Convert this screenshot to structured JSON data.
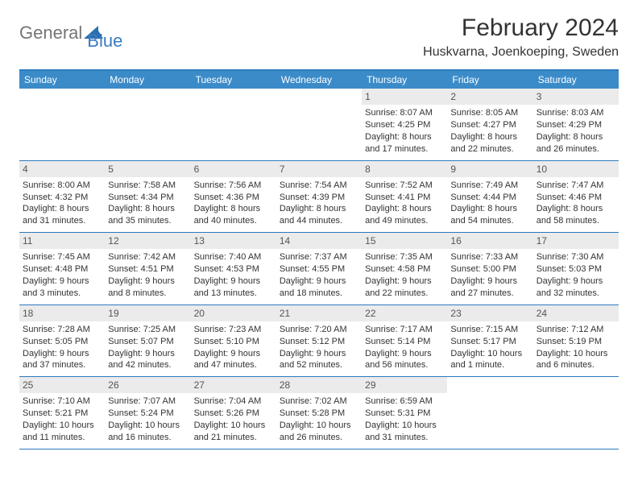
{
  "logo": {
    "text1": "General",
    "text2": "Blue"
  },
  "header": {
    "title": "February 2024",
    "location": "Huskvarna, Joenkoeping, Sweden"
  },
  "dayNames": [
    "Sunday",
    "Monday",
    "Tuesday",
    "Wednesday",
    "Thursday",
    "Friday",
    "Saturday"
  ],
  "colors": {
    "accent": "#3b8bc9",
    "border": "#2b7ac0",
    "dayNumBg": "#ebebeb",
    "text": "#333333",
    "logoGray": "#757575",
    "logoBlue": "#3b7bbf"
  },
  "weeks": [
    [
      null,
      null,
      null,
      null,
      {
        "n": "1",
        "sunrise": "Sunrise: 8:07 AM",
        "sunset": "Sunset: 4:25 PM",
        "d1": "Daylight: 8 hours",
        "d2": "and 17 minutes."
      },
      {
        "n": "2",
        "sunrise": "Sunrise: 8:05 AM",
        "sunset": "Sunset: 4:27 PM",
        "d1": "Daylight: 8 hours",
        "d2": "and 22 minutes."
      },
      {
        "n": "3",
        "sunrise": "Sunrise: 8:03 AM",
        "sunset": "Sunset: 4:29 PM",
        "d1": "Daylight: 8 hours",
        "d2": "and 26 minutes."
      }
    ],
    [
      {
        "n": "4",
        "sunrise": "Sunrise: 8:00 AM",
        "sunset": "Sunset: 4:32 PM",
        "d1": "Daylight: 8 hours",
        "d2": "and 31 minutes."
      },
      {
        "n": "5",
        "sunrise": "Sunrise: 7:58 AM",
        "sunset": "Sunset: 4:34 PM",
        "d1": "Daylight: 8 hours",
        "d2": "and 35 minutes."
      },
      {
        "n": "6",
        "sunrise": "Sunrise: 7:56 AM",
        "sunset": "Sunset: 4:36 PM",
        "d1": "Daylight: 8 hours",
        "d2": "and 40 minutes."
      },
      {
        "n": "7",
        "sunrise": "Sunrise: 7:54 AM",
        "sunset": "Sunset: 4:39 PM",
        "d1": "Daylight: 8 hours",
        "d2": "and 44 minutes."
      },
      {
        "n": "8",
        "sunrise": "Sunrise: 7:52 AM",
        "sunset": "Sunset: 4:41 PM",
        "d1": "Daylight: 8 hours",
        "d2": "and 49 minutes."
      },
      {
        "n": "9",
        "sunrise": "Sunrise: 7:49 AM",
        "sunset": "Sunset: 4:44 PM",
        "d1": "Daylight: 8 hours",
        "d2": "and 54 minutes."
      },
      {
        "n": "10",
        "sunrise": "Sunrise: 7:47 AM",
        "sunset": "Sunset: 4:46 PM",
        "d1": "Daylight: 8 hours",
        "d2": "and 58 minutes."
      }
    ],
    [
      {
        "n": "11",
        "sunrise": "Sunrise: 7:45 AM",
        "sunset": "Sunset: 4:48 PM",
        "d1": "Daylight: 9 hours",
        "d2": "and 3 minutes."
      },
      {
        "n": "12",
        "sunrise": "Sunrise: 7:42 AM",
        "sunset": "Sunset: 4:51 PM",
        "d1": "Daylight: 9 hours",
        "d2": "and 8 minutes."
      },
      {
        "n": "13",
        "sunrise": "Sunrise: 7:40 AM",
        "sunset": "Sunset: 4:53 PM",
        "d1": "Daylight: 9 hours",
        "d2": "and 13 minutes."
      },
      {
        "n": "14",
        "sunrise": "Sunrise: 7:37 AM",
        "sunset": "Sunset: 4:55 PM",
        "d1": "Daylight: 9 hours",
        "d2": "and 18 minutes."
      },
      {
        "n": "15",
        "sunrise": "Sunrise: 7:35 AM",
        "sunset": "Sunset: 4:58 PM",
        "d1": "Daylight: 9 hours",
        "d2": "and 22 minutes."
      },
      {
        "n": "16",
        "sunrise": "Sunrise: 7:33 AM",
        "sunset": "Sunset: 5:00 PM",
        "d1": "Daylight: 9 hours",
        "d2": "and 27 minutes."
      },
      {
        "n": "17",
        "sunrise": "Sunrise: 7:30 AM",
        "sunset": "Sunset: 5:03 PM",
        "d1": "Daylight: 9 hours",
        "d2": "and 32 minutes."
      }
    ],
    [
      {
        "n": "18",
        "sunrise": "Sunrise: 7:28 AM",
        "sunset": "Sunset: 5:05 PM",
        "d1": "Daylight: 9 hours",
        "d2": "and 37 minutes."
      },
      {
        "n": "19",
        "sunrise": "Sunrise: 7:25 AM",
        "sunset": "Sunset: 5:07 PM",
        "d1": "Daylight: 9 hours",
        "d2": "and 42 minutes."
      },
      {
        "n": "20",
        "sunrise": "Sunrise: 7:23 AM",
        "sunset": "Sunset: 5:10 PM",
        "d1": "Daylight: 9 hours",
        "d2": "and 47 minutes."
      },
      {
        "n": "21",
        "sunrise": "Sunrise: 7:20 AM",
        "sunset": "Sunset: 5:12 PM",
        "d1": "Daylight: 9 hours",
        "d2": "and 52 minutes."
      },
      {
        "n": "22",
        "sunrise": "Sunrise: 7:17 AM",
        "sunset": "Sunset: 5:14 PM",
        "d1": "Daylight: 9 hours",
        "d2": "and 56 minutes."
      },
      {
        "n": "23",
        "sunrise": "Sunrise: 7:15 AM",
        "sunset": "Sunset: 5:17 PM",
        "d1": "Daylight: 10 hours",
        "d2": "and 1 minute."
      },
      {
        "n": "24",
        "sunrise": "Sunrise: 7:12 AM",
        "sunset": "Sunset: 5:19 PM",
        "d1": "Daylight: 10 hours",
        "d2": "and 6 minutes."
      }
    ],
    [
      {
        "n": "25",
        "sunrise": "Sunrise: 7:10 AM",
        "sunset": "Sunset: 5:21 PM",
        "d1": "Daylight: 10 hours",
        "d2": "and 11 minutes."
      },
      {
        "n": "26",
        "sunrise": "Sunrise: 7:07 AM",
        "sunset": "Sunset: 5:24 PM",
        "d1": "Daylight: 10 hours",
        "d2": "and 16 minutes."
      },
      {
        "n": "27",
        "sunrise": "Sunrise: 7:04 AM",
        "sunset": "Sunset: 5:26 PM",
        "d1": "Daylight: 10 hours",
        "d2": "and 21 minutes."
      },
      {
        "n": "28",
        "sunrise": "Sunrise: 7:02 AM",
        "sunset": "Sunset: 5:28 PM",
        "d1": "Daylight: 10 hours",
        "d2": "and 26 minutes."
      },
      {
        "n": "29",
        "sunrise": "Sunrise: 6:59 AM",
        "sunset": "Sunset: 5:31 PM",
        "d1": "Daylight: 10 hours",
        "d2": "and 31 minutes."
      },
      null,
      null
    ]
  ]
}
